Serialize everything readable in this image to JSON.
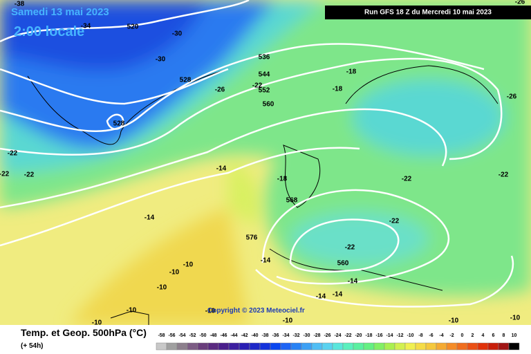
{
  "header": {
    "date": "Samedi 13 mai 2023",
    "time": "2:00 locale",
    "run": "Run GFS 18 Z du Mercredi 10 mai 2023"
  },
  "copyright": "Copyright © 2023 Meteociel.fr",
  "map": {
    "labels": [
      -38,
      -34,
      520,
      -30,
      -30,
      536,
      544,
      528,
      -26,
      -22,
      552,
      -18,
      -18,
      560,
      528,
      -26,
      -22,
      -22,
      -22,
      -14,
      -18,
      -22,
      -22,
      568,
      -14,
      -22,
      576,
      -22,
      -14,
      560,
      -10,
      -10,
      -14,
      -10,
      -14,
      -14,
      -10,
      -10,
      -10,
      -10,
      -10,
      -10,
      -26
    ]
  },
  "footer": {
    "title": "Temp. et Geop. 500hPa (°C)",
    "subtitle": "(+ 54h)"
  },
  "legend": {
    "values": [
      -58,
      -56,
      -54,
      -52,
      -50,
      -48,
      -46,
      -44,
      -42,
      -40,
      -38,
      -36,
      -34,
      -32,
      -30,
      -28,
      -26,
      -24,
      -22,
      -20,
      -18,
      -16,
      -14,
      -12,
      -10,
      -8,
      -6,
      -4,
      -2,
      0,
      2,
      4,
      6,
      8,
      10
    ],
    "colors": [
      "#c8c8c8",
      "#a0a0a0",
      "#8c7f8c",
      "#7c5c84",
      "#6a3e7c",
      "#5a2a80",
      "#4a1e8c",
      "#3c1ea0",
      "#2a1eb4",
      "#1e28c8",
      "#1432dc",
      "#0a46f0",
      "#1e64f5",
      "#2882f5",
      "#3ca0f5",
      "#50bef5",
      "#5ad2f0",
      "#5ae6dc",
      "#5af0be",
      "#5af0a0",
      "#64f082",
      "#82f064",
      "#aaf050",
      "#d2f050",
      "#f0f050",
      "#f5dc46",
      "#f5c83c",
      "#f5aa32",
      "#f58c28",
      "#f06e1e",
      "#eb5014",
      "#e1320a",
      "#c81e0a",
      "#a01414",
      "#000000"
    ]
  }
}
